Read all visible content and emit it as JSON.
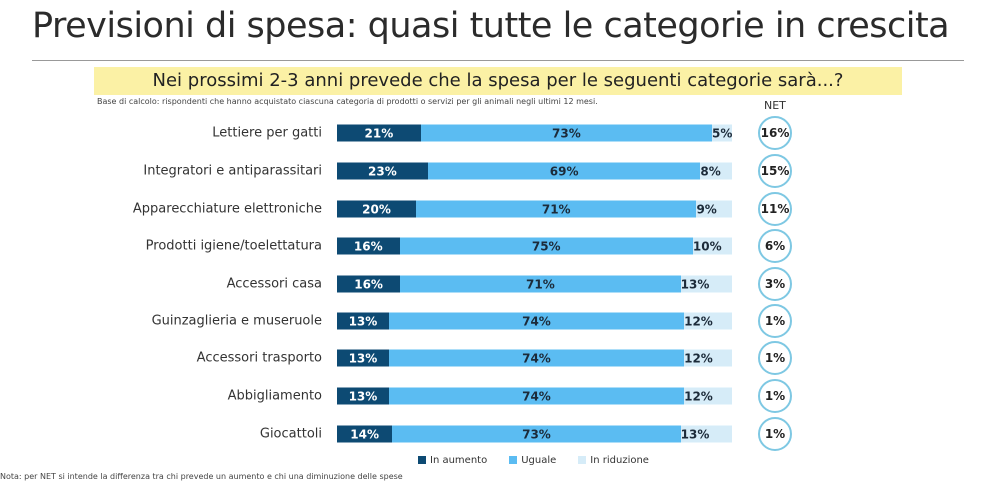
{
  "title": "Previsioni di spesa: quasi tutte le categorie in crescita",
  "chart_data": {
    "type": "bar",
    "orientation": "horizontal-stacked-100",
    "title": "Nei prossimi 2-3 anni prevede che la spesa per le seguenti categorie sarà...?",
    "subtitle": "Base di calcolo: rispondenti che hanno acquistato ciascuna categoria di prodotti o servizi per gli animali negli ultimi 12 mesi.",
    "categories": [
      "Lettiere per gatti",
      "Integratori e antiparassitari",
      "Apparecchiature elettroniche",
      "Prodotti igiene/toelettatura",
      "Accessori casa",
      "Guinzaglieria e museruole",
      "Accessori trasporto",
      "Abbigliamento",
      "Giocattoli"
    ],
    "series": [
      {
        "name": "In aumento",
        "color": "#0d4a73",
        "text_color": "#ffffff",
        "values": [
          21,
          23,
          20,
          16,
          16,
          13,
          13,
          13,
          14
        ]
      },
      {
        "name": "Uguale",
        "color": "#5bbcf2",
        "text_color": "#1c2b3a",
        "values": [
          73,
          69,
          71,
          75,
          71,
          74,
          74,
          74,
          73
        ]
      },
      {
        "name": "In riduzione",
        "color": "#d6ecf8",
        "text_color": "#1c2b3a",
        "values": [
          5,
          8,
          9,
          10,
          13,
          12,
          12,
          12,
          13
        ]
      }
    ],
    "net_label": "NET",
    "net_values": [
      16,
      15,
      11,
      6,
      3,
      1,
      1,
      1,
      1
    ],
    "legend": "bottom"
  },
  "note": "Nota: per NET si intende la differenza tra chi prevede un aumento e chi una diminuzione delle spese"
}
